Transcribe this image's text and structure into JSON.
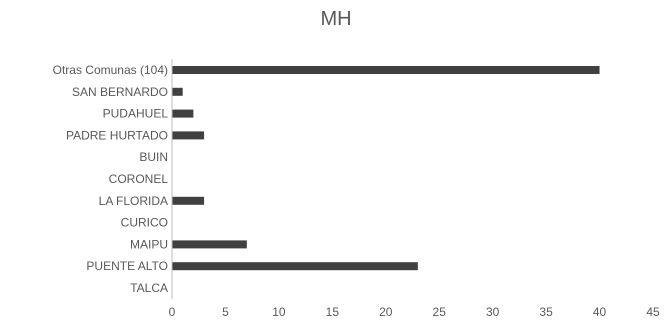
{
  "chart_data": {
    "type": "bar",
    "orientation": "horizontal",
    "title": "MH",
    "xlabel": "",
    "ylabel": "",
    "categories": [
      "Otras Comunas (104)",
      "SAN BERNARDO",
      "PUDAHUEL",
      "PADRE HURTADO",
      "BUIN",
      "CORONEL",
      "LA FLORIDA",
      "CURICO",
      "MAIPU",
      "PUENTE ALTO",
      "TALCA"
    ],
    "values": [
      40,
      1,
      2,
      3,
      0,
      0,
      3,
      0,
      7,
      23,
      0
    ],
    "xlim": [
      0,
      45
    ],
    "xticks": [
      "0",
      "5",
      "10",
      "15",
      "20",
      "25",
      "30",
      "35",
      "40",
      "45"
    ],
    "grid": false,
    "legend": "none",
    "bar_color": "#404040"
  }
}
